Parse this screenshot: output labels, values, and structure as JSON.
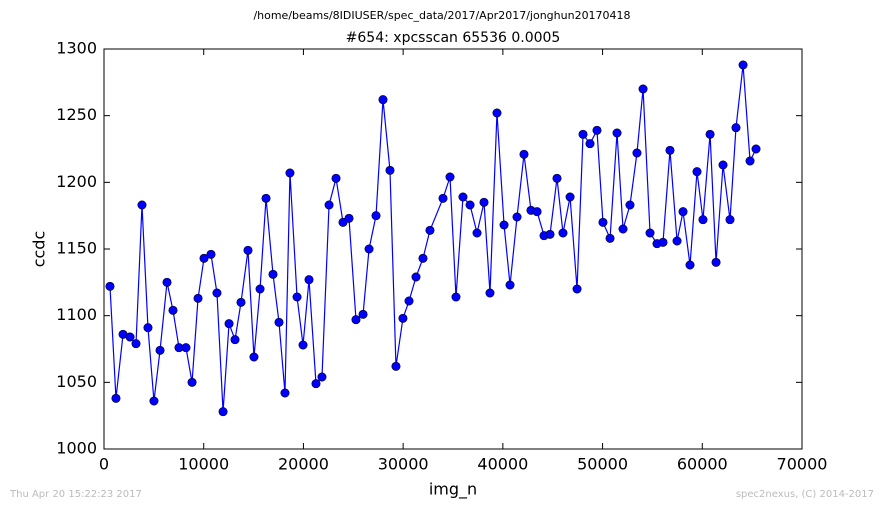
{
  "chart_data": {
    "type": "line",
    "title": "/home/beams/8IDIUSER/spec_data/2017/Apr2017/jonghun20170418",
    "subtitle": "#654: xpcsscan 65536 0.0005",
    "x_label": "img_n",
    "y_label": "ccdc",
    "color": "#0000ff",
    "x": [
      600,
      1200,
      1910,
      2610,
      3210,
      3810,
      4410,
      5010,
      5620,
      6320,
      6920,
      7520,
      8220,
      8830,
      9430,
      10030,
      10730,
      11330,
      11940,
      12540,
      13140,
      13740,
      14440,
      15040,
      15650,
      16250,
      16950,
      17550,
      18150,
      18650,
      19360,
      19960,
      20560,
      21260,
      21860,
      22570,
      23270,
      23970,
      24570,
      25270,
      25980,
      26580,
      27280,
      27980,
      28680,
      29280,
      29980,
      30590,
      31290,
      31990,
      32690,
      34000,
      34700,
      35300,
      36000,
      36710,
      37410,
      38110,
      38710,
      39410,
      40120,
      40720,
      41420,
      42120,
      42820,
      43430,
      44130,
      44730,
      45430,
      46030,
      46740,
      47440,
      48040,
      48740,
      49440,
      50040,
      50750,
      51450,
      52050,
      52750,
      53450,
      54060,
      54760,
      55460,
      56060,
      56760,
      57470,
      58070,
      58770,
      59470,
      60070,
      60780,
      61380,
      62080,
      62780,
      63380,
      64090,
      64790,
      65390
    ],
    "values": [
      1122,
      1038,
      1086,
      1084,
      1079,
      1183,
      1091,
      1036,
      1074,
      1125,
      1104,
      1076,
      1076,
      1050,
      1113,
      1143,
      1146,
      1117,
      1028,
      1094,
      1082,
      1110,
      1149,
      1069,
      1120,
      1188,
      1131,
      1095,
      1042,
      1207,
      1114,
      1078,
      1127,
      1049,
      1054,
      1183,
      1203,
      1170,
      1173,
      1097,
      1101,
      1150,
      1175,
      1262,
      1209,
      1062,
      1098,
      1111,
      1129,
      1143,
      1164,
      1188,
      1204,
      1114,
      1189,
      1183,
      1162,
      1185,
      1117,
      1252,
      1168,
      1123,
      1174,
      1221,
      1179,
      1178,
      1160,
      1161,
      1203,
      1162,
      1189,
      1120,
      1236,
      1229,
      1239,
      1170,
      1158,
      1237,
      1165,
      1183,
      1222,
      1270,
      1162,
      1154,
      1155,
      1224,
      1156,
      1178,
      1138,
      1208,
      1172,
      1236,
      1140,
      1213,
      1172,
      1241,
      1288,
      1216,
      1225
    ],
    "xlim": [
      0,
      70000
    ],
    "ylim": [
      1000,
      1300
    ],
    "xticks": [
      0,
      10000,
      20000,
      30000,
      40000,
      50000,
      60000,
      70000
    ],
    "yticks": [
      1000,
      1050,
      1100,
      1150,
      1200,
      1250,
      1300
    ]
  },
  "footer": {
    "left": "Thu Apr 20 15:22:23 2017",
    "right": "spec2nexus, (C) 2014-2017"
  }
}
